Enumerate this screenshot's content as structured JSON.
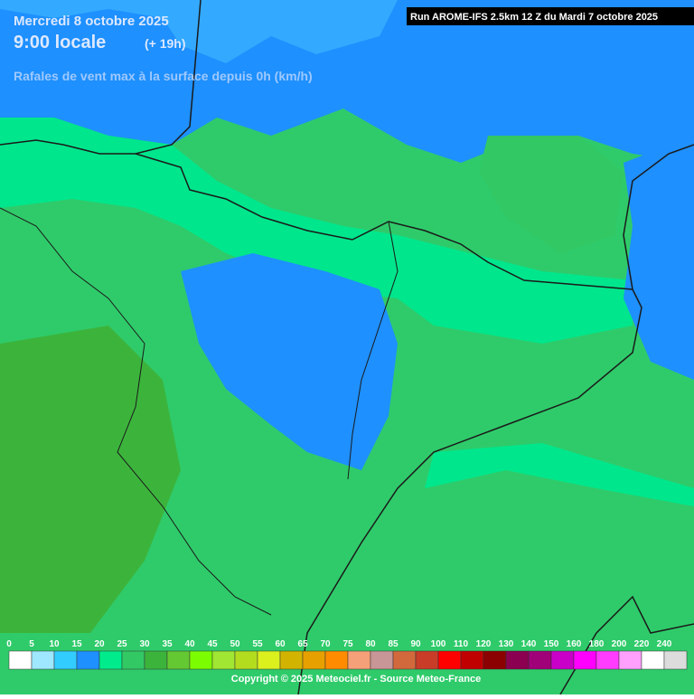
{
  "header": {
    "date": "Mercredi 8 octobre 2025",
    "time": "9:00 locale",
    "lead": "(+ 19h)",
    "variable": "Rafales de vent max à la surface depuis 0h (km/h)"
  },
  "run": "Run AROME-IFS 2.5km 12 Z du Mardi 7 octobre 2025",
  "legend": {
    "labels": [
      0,
      5,
      10,
      15,
      20,
      25,
      30,
      35,
      40,
      45,
      50,
      55,
      60,
      65,
      70,
      75,
      80,
      85,
      90,
      100,
      110,
      120,
      130,
      140,
      150,
      160,
      180,
      200,
      220,
      240
    ],
    "colors": [
      "#ffffff",
      "#9ee7ff",
      "#33ccff",
      "#1e90ff",
      "#00eb8c",
      "#32c864",
      "#3cb43c",
      "#64c832",
      "#7cfc00",
      "#a0e632",
      "#b4dc1e",
      "#dcf01e",
      "#d2b400",
      "#e6a000",
      "#ff8c00",
      "#f5a078",
      "#c89696",
      "#d2693c",
      "#c83c28",
      "#ff0000",
      "#c00000",
      "#8b0000",
      "#8b0050",
      "#a00078",
      "#c800c8",
      "#ff00ff",
      "#ff3cff",
      "#ffa0ff",
      "#ffffff",
      "#dcdcdc"
    ]
  },
  "copyright": "Copyright © 2025 Meteociel.fr - Source Meteo-France"
}
